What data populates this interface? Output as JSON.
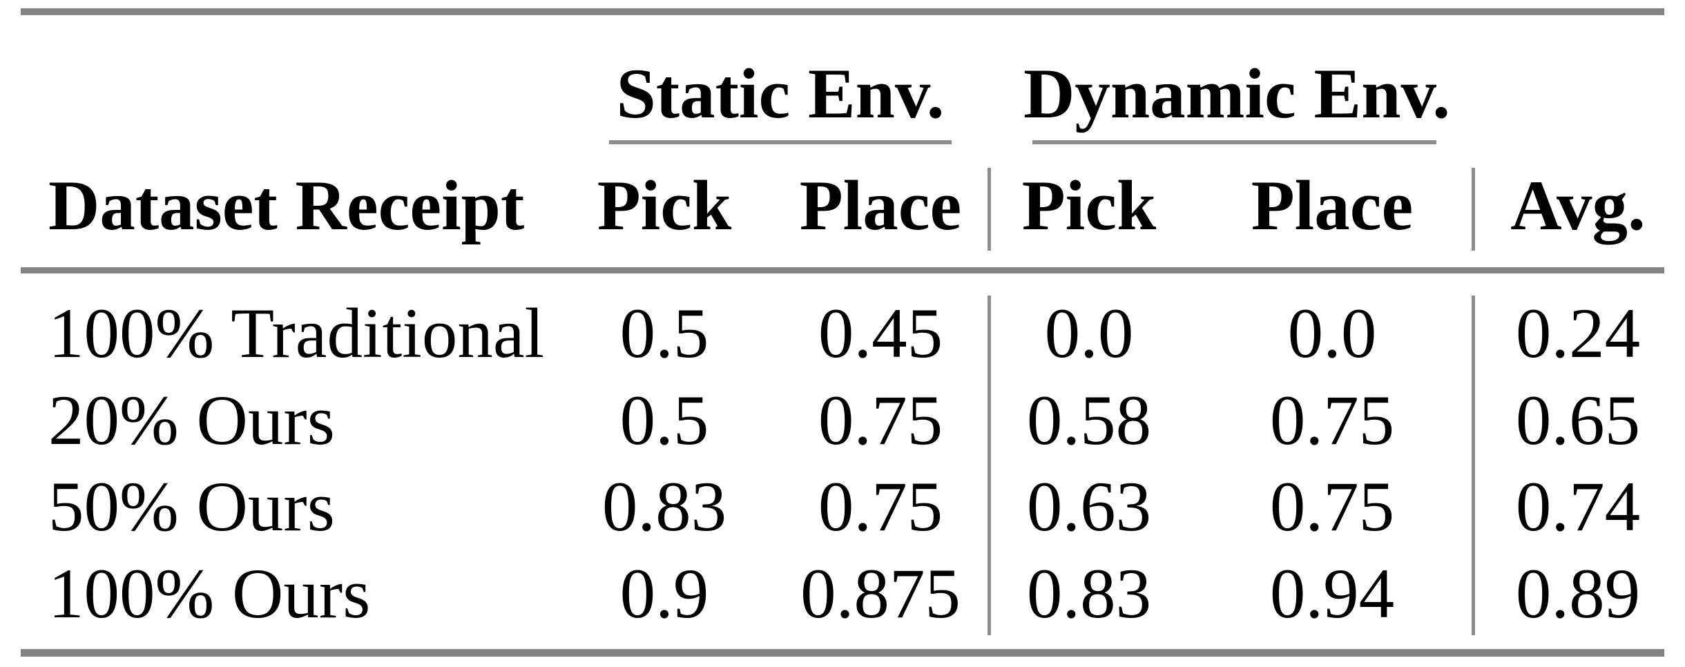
{
  "figure": {
    "type": "academic-results-table",
    "background": "#ffffff",
    "text_color": "#000000",
    "rule_color": "#848484"
  },
  "table": {
    "row_header": "Dataset Receipt",
    "groups": [
      {
        "label": "Static Env.",
        "columns": [
          "Pick",
          "Place"
        ]
      },
      {
        "label": "Dynamic Env.",
        "columns": [
          "Pick",
          "Place"
        ]
      }
    ],
    "avg_header": "Avg.",
    "rows": [
      {
        "label": "100% Traditional",
        "s_pick": "0.5",
        "s_place": "0.45",
        "d_pick": "0.0",
        "d_place": "0.0",
        "avg": "0.24"
      },
      {
        "label": "20% Ours",
        "s_pick": "0.5",
        "s_place": "0.75",
        "d_pick": "0.58",
        "d_place": "0.75",
        "avg": "0.65"
      },
      {
        "label": "50% Ours",
        "s_pick": "0.83",
        "s_place": "0.75",
        "d_pick": "0.63",
        "d_place": "0.75",
        "avg": "0.74"
      },
      {
        "label": "100% Ours",
        "s_pick": "0.9",
        "s_place": "0.875",
        "d_pick": "0.83",
        "d_place": "0.94",
        "avg": "0.89"
      }
    ]
  },
  "chart_data": {
    "type": "table",
    "title": "",
    "columns": [
      "Dataset Receipt",
      "Static Env. Pick",
      "Static Env. Place",
      "Dynamic Env. Pick",
      "Dynamic Env. Place",
      "Avg."
    ],
    "rows": [
      [
        "100% Traditional",
        0.5,
        0.45,
        0.0,
        0.0,
        0.24
      ],
      [
        "20% Ours",
        0.5,
        0.75,
        0.58,
        0.75,
        0.65
      ],
      [
        "50% Ours",
        0.83,
        0.75,
        0.63,
        0.75,
        0.74
      ],
      [
        "100% Ours",
        0.9,
        0.875,
        0.83,
        0.94,
        0.89
      ]
    ]
  }
}
